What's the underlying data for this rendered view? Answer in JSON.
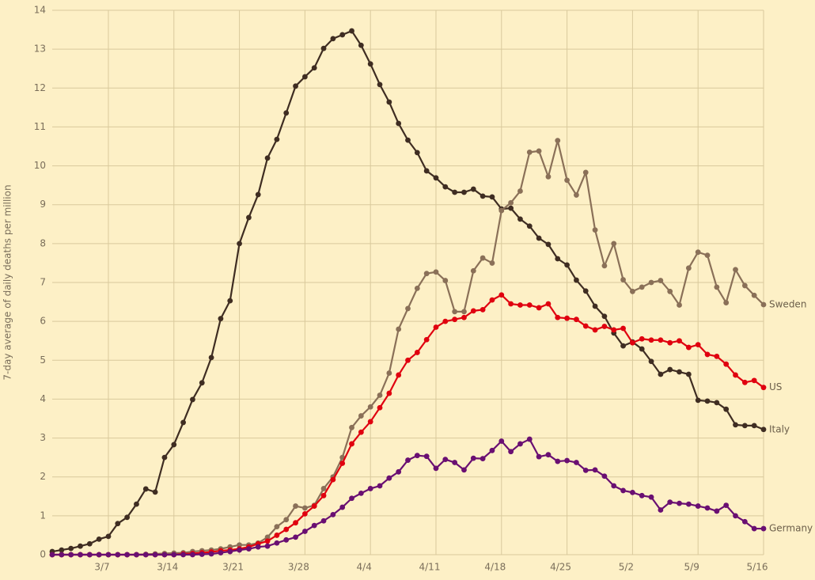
{
  "chart_data": {
    "type": "line",
    "y_label": "7-day average of daily deaths per million",
    "categories": [
      null,
      null,
      null,
      null,
      null,
      null,
      "3/7",
      null,
      null,
      null,
      null,
      null,
      null,
      "3/14",
      null,
      null,
      null,
      null,
      null,
      null,
      "3/21",
      null,
      null,
      null,
      null,
      null,
      null,
      "3/28",
      null,
      null,
      null,
      null,
      null,
      null,
      "4/4",
      null,
      null,
      null,
      null,
      null,
      null,
      "4/11",
      null,
      null,
      null,
      null,
      null,
      null,
      "4/18",
      null,
      null,
      null,
      null,
      null,
      null,
      "4/25",
      null,
      null,
      null,
      null,
      null,
      null,
      "5/2",
      null,
      null,
      null,
      null,
      null,
      null,
      "5/9",
      null,
      null,
      null,
      null,
      null,
      null,
      "5/16"
    ],
    "ylim": [
      0,
      14
    ],
    "yticks": [
      0,
      1,
      2,
      3,
      4,
      5,
      6,
      7,
      8,
      9,
      10,
      11,
      12,
      13,
      14
    ],
    "grid": true,
    "series": [
      {
        "name": "Italy",
        "color": "#3f2d22",
        "values": [
          0.08,
          0.12,
          0.16,
          0.22,
          0.28,
          0.4,
          0.47,
          0.8,
          0.96,
          1.3,
          1.69,
          1.61,
          2.5,
          2.83,
          3.4,
          3.99,
          4.42,
          5.07,
          6.07,
          6.53,
          8.0,
          8.67,
          9.26,
          10.2,
          10.68,
          11.36,
          12.05,
          12.29,
          12.52,
          13.02,
          13.27,
          13.37,
          13.47,
          13.1,
          12.62,
          12.09,
          11.64,
          11.09,
          10.66,
          10.34,
          9.87,
          9.69,
          9.46,
          9.32,
          9.32,
          9.4,
          9.22,
          9.2,
          8.89,
          8.91,
          8.63,
          8.45,
          8.14,
          7.98,
          7.61,
          7.45,
          7.06,
          6.78,
          6.39,
          6.13,
          5.7,
          5.37,
          5.47,
          5.29,
          4.97,
          4.64,
          4.76,
          4.7,
          4.64,
          3.97,
          3.95,
          3.91,
          3.74,
          3.34,
          3.32,
          3.32,
          3.22
        ]
      },
      {
        "name": "Sweden",
        "color": "#8a7058",
        "values": [
          0,
          0,
          0,
          0,
          0,
          0,
          0,
          0,
          0,
          0,
          0.01,
          0.02,
          0.03,
          0.04,
          0.05,
          0.08,
          0.1,
          0.12,
          0.15,
          0.2,
          0.25,
          0.25,
          0.3,
          0.45,
          0.72,
          0.9,
          1.25,
          1.2,
          1.27,
          1.7,
          2.0,
          2.5,
          3.27,
          3.57,
          3.8,
          4.1,
          4.67,
          5.8,
          6.33,
          6.85,
          7.23,
          7.27,
          7.05,
          6.25,
          6.25,
          7.3,
          7.63,
          7.5,
          8.85,
          9.05,
          9.35,
          10.35,
          10.38,
          9.72,
          10.65,
          9.63,
          9.25,
          9.83,
          8.35,
          7.43,
          8.0,
          7.07,
          6.77,
          6.88,
          7.0,
          7.05,
          6.77,
          6.42,
          7.37,
          7.78,
          7.7,
          6.88,
          6.48,
          7.33,
          6.92,
          6.67,
          6.43
        ]
      },
      {
        "name": "US",
        "color": "#e0000f",
        "values": [
          0,
          0,
          0,
          0,
          0,
          0,
          0,
          0,
          0,
          0,
          0,
          0,
          0,
          0,
          0.02,
          0.03,
          0.05,
          0.07,
          0.1,
          0.12,
          0.15,
          0.2,
          0.28,
          0.35,
          0.5,
          0.65,
          0.82,
          1.05,
          1.25,
          1.52,
          1.93,
          2.35,
          2.85,
          3.15,
          3.42,
          3.78,
          4.15,
          4.62,
          5.0,
          5.2,
          5.53,
          5.85,
          6.0,
          6.05,
          6.1,
          6.27,
          6.3,
          6.55,
          6.68,
          6.45,
          6.42,
          6.42,
          6.35,
          6.45,
          6.1,
          6.08,
          6.05,
          5.88,
          5.78,
          5.87,
          5.78,
          5.82,
          5.45,
          5.55,
          5.52,
          5.52,
          5.45,
          5.5,
          5.33,
          5.4,
          5.15,
          5.1,
          4.9,
          4.62,
          4.43,
          4.48,
          4.3
        ]
      },
      {
        "name": "Germany",
        "color": "#6a0f72",
        "values": [
          0,
          0,
          0,
          0,
          0,
          0,
          0,
          0,
          0,
          0,
          0,
          0,
          0,
          0,
          0,
          0,
          0.01,
          0.02,
          0.05,
          0.08,
          0.12,
          0.15,
          0.2,
          0.22,
          0.3,
          0.38,
          0.45,
          0.6,
          0.75,
          0.87,
          1.03,
          1.22,
          1.45,
          1.58,
          1.7,
          1.77,
          1.97,
          2.13,
          2.43,
          2.55,
          2.53,
          2.22,
          2.45,
          2.37,
          2.18,
          2.48,
          2.47,
          2.68,
          2.92,
          2.65,
          2.85,
          2.97,
          2.52,
          2.57,
          2.4,
          2.42,
          2.37,
          2.17,
          2.18,
          2.02,
          1.77,
          1.65,
          1.6,
          1.52,
          1.48,
          1.15,
          1.35,
          1.32,
          1.3,
          1.25,
          1.2,
          1.12,
          1.27,
          1.0,
          0.85,
          0.67,
          0.67
        ]
      }
    ]
  }
}
